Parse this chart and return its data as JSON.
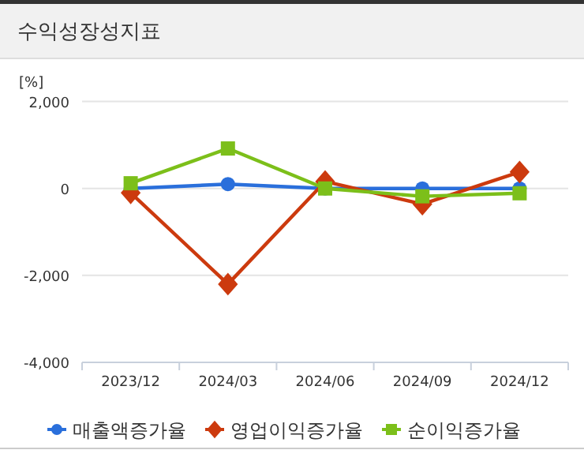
{
  "chart_data": {
    "type": "line",
    "title": "수익성장성지표",
    "ylabel": "[%]",
    "categories": [
      "2023/12",
      "2024/03",
      "2024/06",
      "2024/09",
      "2024/12"
    ],
    "series": [
      {
        "name": "매출액증가율",
        "color": "#2a6fdb",
        "marker": "circle",
        "values": [
          0,
          100,
          0,
          0,
          0
        ]
      },
      {
        "name": "영업이익증가율",
        "color": "#cc3a0e",
        "marker": "diamond",
        "values": [
          -100,
          -2200,
          160,
          -360,
          380
        ]
      },
      {
        "name": "순이익증가율",
        "color": "#7cbf1a",
        "marker": "square",
        "values": [
          120,
          920,
          0,
          -180,
          -110
        ]
      }
    ],
    "ylim": [
      -4000,
      2000
    ],
    "yticks": [
      {
        "value": -4000,
        "label": "-4,000"
      },
      {
        "value": -2000,
        "label": "-2,000"
      },
      0,
      {
        "value": 2000,
        "label": "2,000"
      }
    ],
    "grid": "y",
    "legend": "bottom"
  }
}
